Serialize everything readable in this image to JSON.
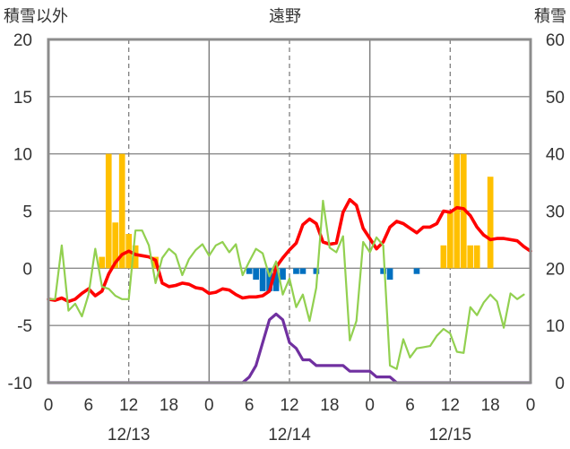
{
  "chart_data": {
    "type": "bar+line",
    "title": "遠野",
    "left_axis_label": "積雪以外",
    "right_axis_label": "積雪",
    "left_ylim": [
      -10,
      20
    ],
    "left_yticks": [
      "20",
      "15",
      "10",
      "5",
      "0",
      "-5",
      "-10"
    ],
    "right_ylim": [
      0,
      60
    ],
    "right_yticks": [
      "60",
      "50",
      "40",
      "30",
      "20",
      "10",
      "0"
    ],
    "xlim_hours": [
      0,
      72
    ],
    "x_tick_hours": [
      0,
      6,
      12,
      18,
      24,
      30,
      36,
      42,
      48,
      54,
      60,
      66,
      72
    ],
    "x_tick_labels": [
      "0",
      "6",
      "12",
      "18",
      "0",
      "6",
      "12",
      "18",
      "0",
      "6",
      "12",
      "18",
      "0"
    ],
    "dates": [
      {
        "label": "12/13",
        "hour": 12
      },
      {
        "label": "12/14",
        "hour": 36
      },
      {
        "label": "12/15",
        "hour": 60
      }
    ],
    "grid": {
      "dashed_at_hours": [
        12,
        36,
        60
      ],
      "solid_at_hours": [
        24,
        48
      ],
      "horizontal": true
    },
    "series": [
      {
        "kind": "bar",
        "axis": "left",
        "color": "#ffc000",
        "points": [
          [
            8,
            1.0
          ],
          [
            9,
            10.0
          ],
          [
            10,
            4.0
          ],
          [
            11,
            10.0
          ],
          [
            12,
            3.0
          ],
          [
            13,
            2.0
          ],
          [
            16,
            1.0
          ],
          [
            59,
            2.0
          ],
          [
            60,
            5.0
          ],
          [
            61,
            10.0
          ],
          [
            62,
            10.0
          ],
          [
            63,
            2.0
          ],
          [
            64,
            2.0
          ],
          [
            66,
            8.0
          ]
        ]
      },
      {
        "kind": "bar",
        "axis": "left",
        "color": "#0070c0",
        "points": [
          [
            30,
            -0.5
          ],
          [
            31,
            -1.0
          ],
          [
            32,
            -2.0
          ],
          [
            33,
            -2.0
          ],
          [
            34,
            -2.0
          ],
          [
            35,
            -1.0
          ],
          [
            37,
            -0.5
          ],
          [
            38,
            -0.5
          ],
          [
            40,
            -0.5
          ],
          [
            50,
            -0.5
          ],
          [
            51,
            -1.0
          ],
          [
            55,
            -0.5
          ]
        ]
      },
      {
        "kind": "line",
        "axis": "left",
        "color": "#ff0000",
        "points": [
          [
            0,
            -2.7
          ],
          [
            1,
            -2.8
          ],
          [
            2,
            -2.6
          ],
          [
            3,
            -2.9
          ],
          [
            4,
            -2.7
          ],
          [
            5,
            -2.2
          ],
          [
            6,
            -1.8
          ],
          [
            7,
            -2.4
          ],
          [
            8,
            -2.0
          ],
          [
            9,
            -0.5
          ],
          [
            10,
            0.5
          ],
          [
            11,
            1.2
          ],
          [
            12,
            1.5
          ],
          [
            13,
            1.2
          ],
          [
            14,
            1.1
          ],
          [
            15,
            1.0
          ],
          [
            16,
            0.7
          ],
          [
            17,
            -1.3
          ],
          [
            18,
            -1.6
          ],
          [
            19,
            -1.5
          ],
          [
            20,
            -1.3
          ],
          [
            21,
            -1.4
          ],
          [
            22,
            -1.7
          ],
          [
            23,
            -1.8
          ],
          [
            24,
            -2.2
          ],
          [
            25,
            -2.1
          ],
          [
            26,
            -1.8
          ],
          [
            27,
            -1.9
          ],
          [
            28,
            -2.3
          ],
          [
            29,
            -2.6
          ],
          [
            30,
            -2.5
          ],
          [
            31,
            -2.5
          ],
          [
            32,
            -2.4
          ],
          [
            33,
            -2.0
          ],
          [
            34,
            0.1
          ],
          [
            35,
            0.9
          ],
          [
            36,
            1.6
          ],
          [
            37,
            2.2
          ],
          [
            38,
            3.8
          ],
          [
            39,
            4.3
          ],
          [
            40,
            3.9
          ],
          [
            41,
            2.3
          ],
          [
            42,
            2.1
          ],
          [
            43,
            2.2
          ],
          [
            44,
            4.9
          ],
          [
            45,
            6.0
          ],
          [
            46,
            5.5
          ],
          [
            47,
            3.5
          ],
          [
            48,
            2.6
          ],
          [
            49,
            1.7
          ],
          [
            50,
            2.3
          ],
          [
            51,
            3.6
          ],
          [
            52,
            4.1
          ],
          [
            53,
            3.9
          ],
          [
            54,
            3.5
          ],
          [
            55,
            3.1
          ],
          [
            56,
            3.6
          ],
          [
            57,
            3.6
          ],
          [
            58,
            3.9
          ],
          [
            59,
            5.0
          ],
          [
            60,
            4.9
          ],
          [
            61,
            5.3
          ],
          [
            62,
            5.2
          ],
          [
            63,
            4.6
          ],
          [
            64,
            3.6
          ],
          [
            65,
            2.9
          ],
          [
            66,
            2.5
          ],
          [
            67,
            2.6
          ],
          [
            68,
            2.6
          ],
          [
            69,
            2.5
          ],
          [
            70,
            2.4
          ],
          [
            71,
            1.9
          ],
          [
            72,
            1.5
          ]
        ]
      },
      {
        "kind": "line",
        "axis": "left",
        "color": "#92d050",
        "points": [
          [
            0,
            -2.7
          ],
          [
            1,
            -2.7
          ],
          [
            2,
            2.0
          ],
          [
            3,
            -3.7
          ],
          [
            4,
            -3.1
          ],
          [
            5,
            -4.2
          ],
          [
            6,
            -2.3
          ],
          [
            7,
            1.7
          ],
          [
            8,
            -1.6
          ],
          [
            9,
            -1.8
          ],
          [
            10,
            -2.4
          ],
          [
            11,
            -2.7
          ],
          [
            12,
            -2.7
          ],
          [
            13,
            3.3
          ],
          [
            14,
            3.3
          ],
          [
            15,
            2.0
          ],
          [
            16,
            -1.3
          ],
          [
            17,
            0.9
          ],
          [
            18,
            1.7
          ],
          [
            19,
            1.2
          ],
          [
            20,
            -0.6
          ],
          [
            21,
            0.8
          ],
          [
            22,
            1.6
          ],
          [
            23,
            2.1
          ],
          [
            24,
            1.1
          ],
          [
            25,
            2.0
          ],
          [
            26,
            2.3
          ],
          [
            27,
            1.4
          ],
          [
            28,
            2.1
          ],
          [
            29,
            -0.6
          ],
          [
            30,
            0.6
          ],
          [
            31,
            1.7
          ],
          [
            32,
            1.3
          ],
          [
            33,
            -0.7
          ],
          [
            34,
            0.6
          ],
          [
            35,
            -2.3
          ],
          [
            36,
            -0.9
          ],
          [
            37,
            -3.4
          ],
          [
            38,
            -2.3
          ],
          [
            39,
            -4.6
          ],
          [
            40,
            -1.7
          ],
          [
            41,
            5.9
          ],
          [
            42,
            1.8
          ],
          [
            43,
            1.4
          ],
          [
            44,
            2.8
          ],
          [
            45,
            -6.3
          ],
          [
            46,
            -4.6
          ],
          [
            47,
            2.3
          ],
          [
            48,
            1.4
          ],
          [
            49,
            2.7
          ],
          [
            50,
            2.0
          ],
          [
            51,
            -8.5
          ],
          [
            52,
            -8.8
          ],
          [
            53,
            -6.2
          ],
          [
            54,
            -7.8
          ],
          [
            55,
            -7.0
          ],
          [
            56,
            -6.9
          ],
          [
            57,
            -6.8
          ],
          [
            58,
            -5.9
          ],
          [
            59,
            -5.3
          ],
          [
            60,
            -5.7
          ],
          [
            61,
            -7.3
          ],
          [
            62,
            -7.4
          ],
          [
            63,
            -3.4
          ],
          [
            64,
            -4.1
          ],
          [
            65,
            -3.0
          ],
          [
            66,
            -2.3
          ],
          [
            67,
            -2.9
          ],
          [
            68,
            -5.2
          ],
          [
            69,
            -2.2
          ],
          [
            70,
            -2.7
          ],
          [
            71,
            -2.3
          ]
        ]
      },
      {
        "kind": "line",
        "axis": "right",
        "color": "#7030a0",
        "points": [
          [
            0,
            0
          ],
          [
            29,
            0
          ],
          [
            30,
            1.0
          ],
          [
            31,
            3.0
          ],
          [
            32,
            7.0
          ],
          [
            33,
            11.0
          ],
          [
            34,
            12.0
          ],
          [
            35,
            11.0
          ],
          [
            36,
            7.0
          ],
          [
            37,
            6.0
          ],
          [
            38,
            4.0
          ],
          [
            39,
            4.0
          ],
          [
            40,
            3.0
          ],
          [
            41,
            3.0
          ],
          [
            42,
            3.0
          ],
          [
            43,
            3.0
          ],
          [
            44,
            3.0
          ],
          [
            45,
            2.0
          ],
          [
            46,
            2.0
          ],
          [
            47,
            2.0
          ],
          [
            48,
            2.0
          ],
          [
            49,
            1.0
          ],
          [
            50,
            1.0
          ],
          [
            51,
            1.0
          ],
          [
            52,
            0
          ],
          [
            72,
            0
          ]
        ]
      }
    ]
  }
}
